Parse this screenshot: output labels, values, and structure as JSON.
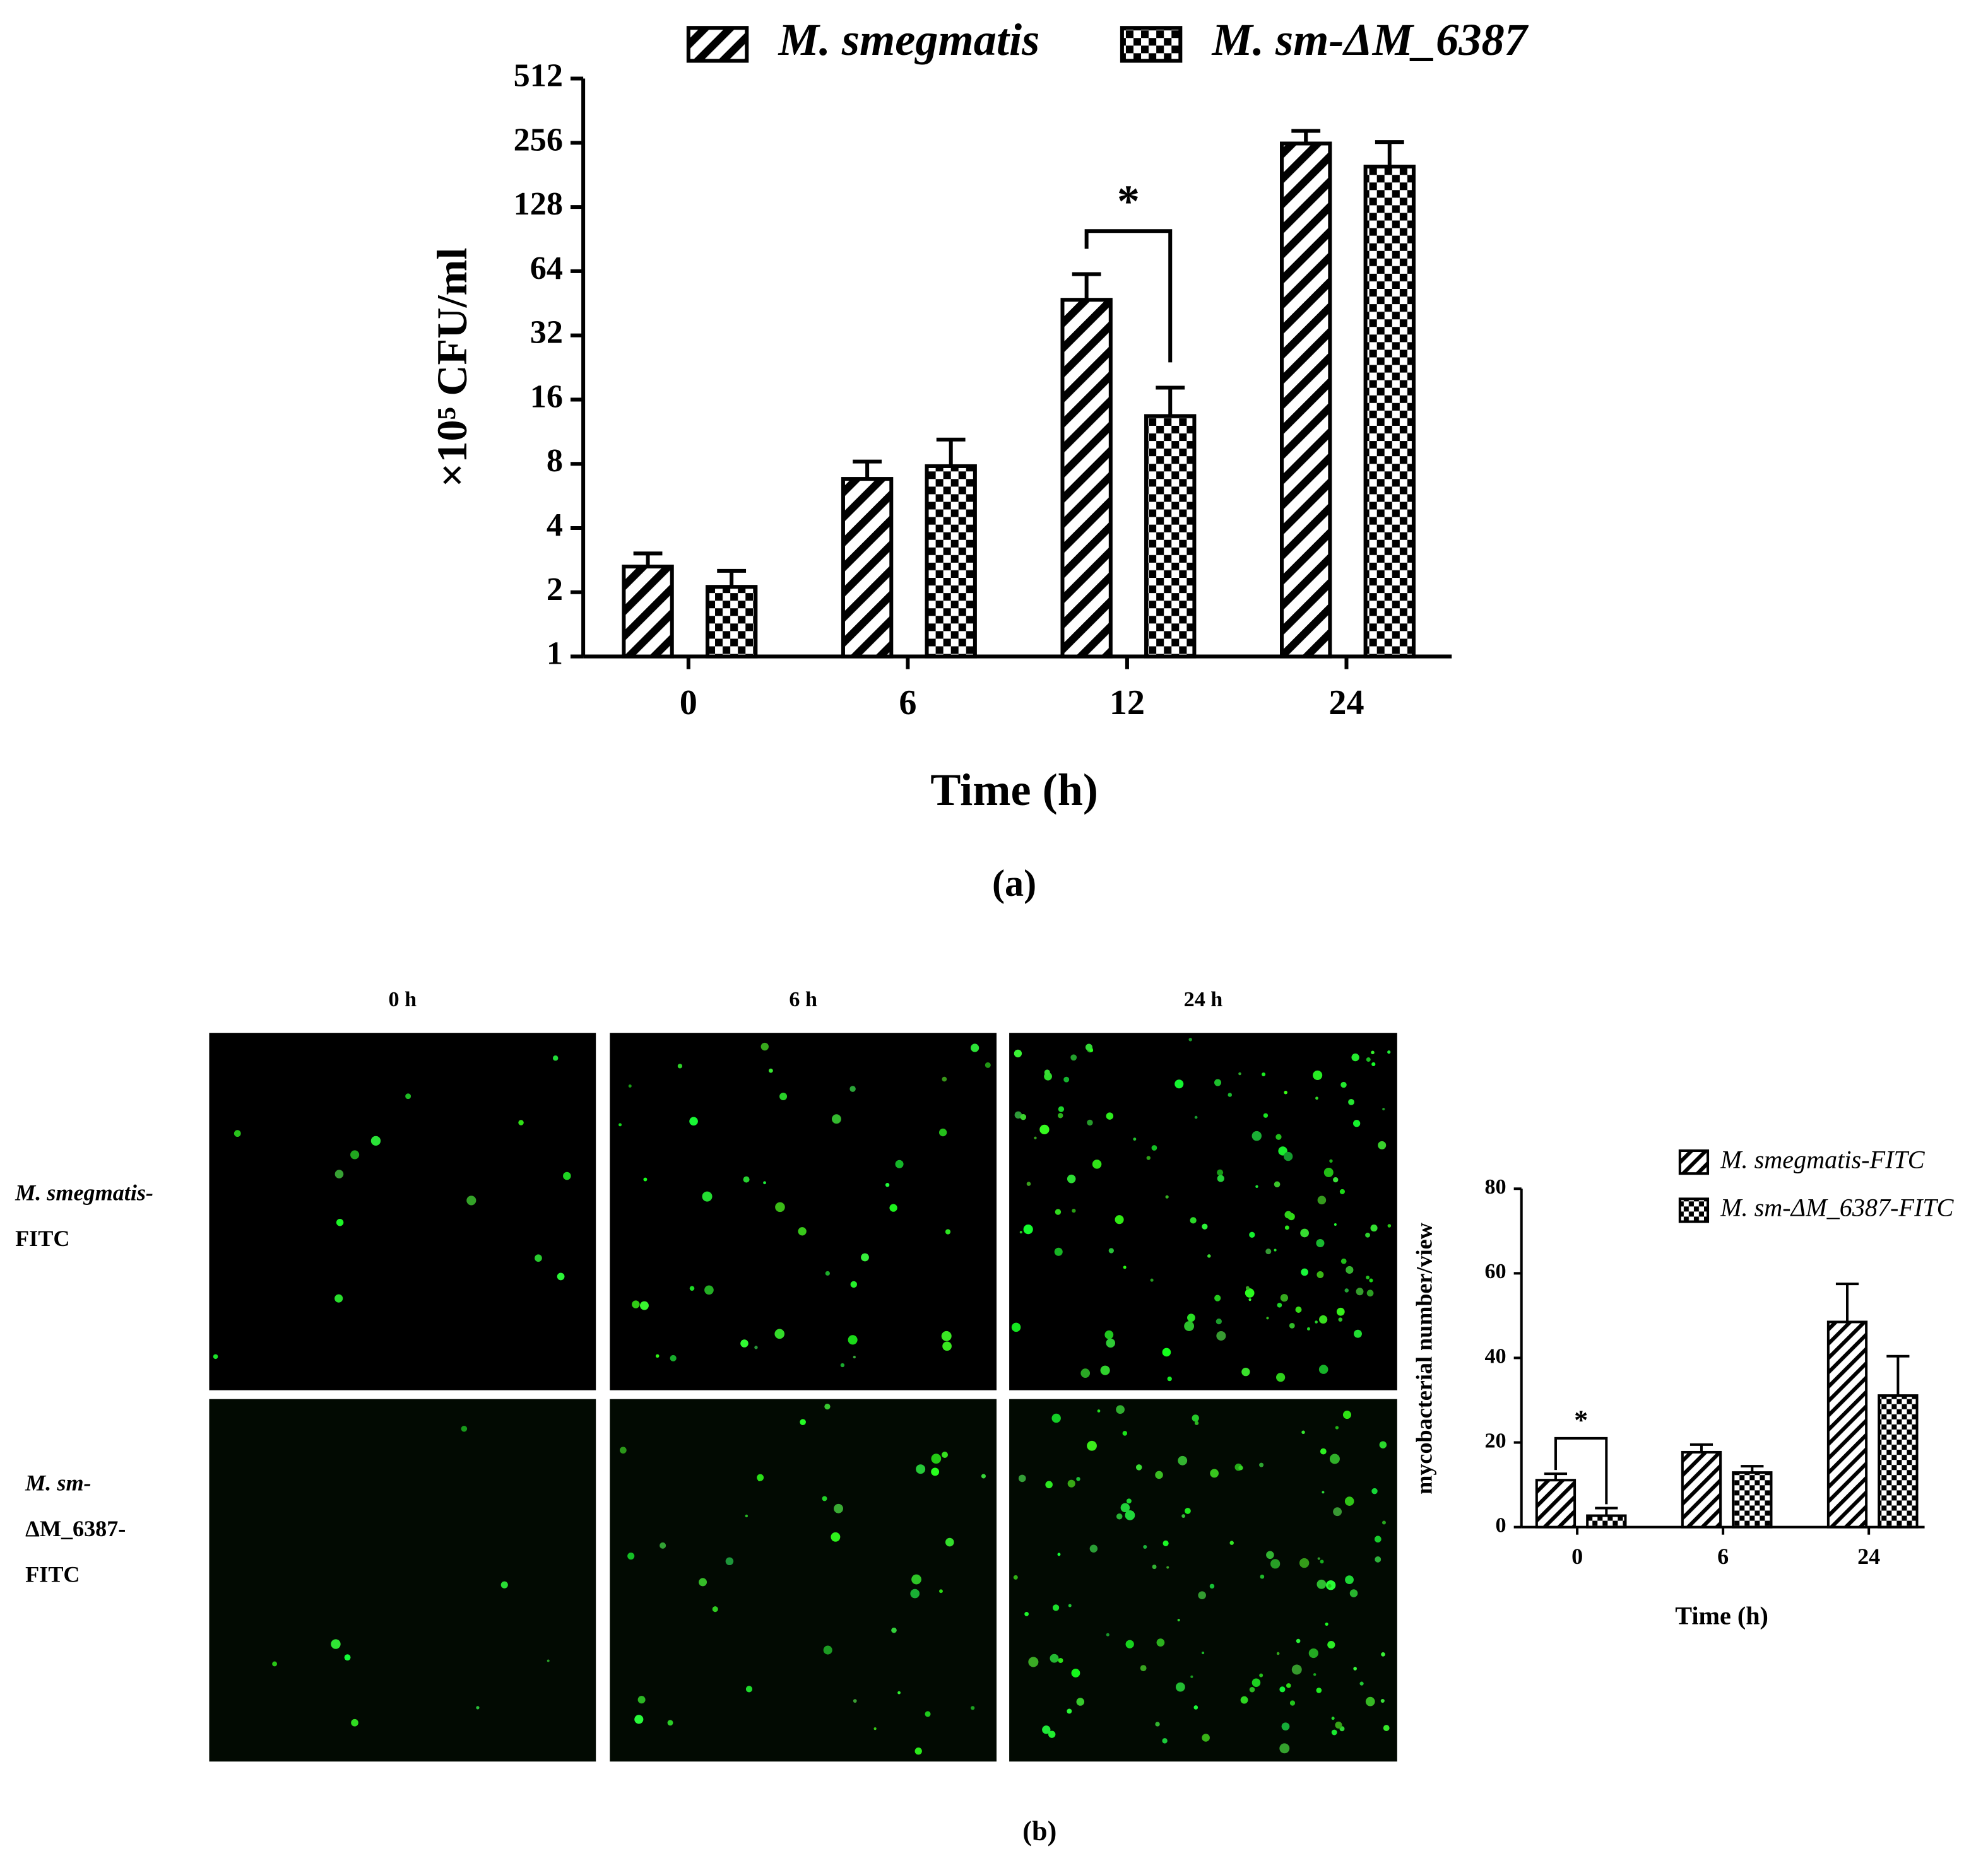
{
  "chart_data": [
    {
      "type": "bar",
      "panel_label": "(a)",
      "xlabel": "Time (h)",
      "ylabel": "×10⁵ CFU/ml",
      "categories": [
        "0",
        "6",
        "12",
        "24"
      ],
      "series": [
        {
          "name": "M. smegmatis",
          "color": "#000000",
          "pattern": "hatch",
          "values": [
            2.64,
            6.8,
            47,
            254
          ],
          "errors": [
            0.4,
            1.4,
            15,
            37
          ]
        },
        {
          "name": "M. sm-ΔM_6387",
          "color": "#000000",
          "pattern": "checker",
          "values": [
            2.12,
            7.8,
            13.4,
            198
          ],
          "errors": [
            0.4,
            2.6,
            4.8,
            60
          ]
        }
      ],
      "log_scale": true,
      "log_base": 2,
      "ylim": [
        1,
        512
      ],
      "yticks": [
        1,
        2,
        4,
        8,
        16,
        32,
        64,
        128,
        256,
        512
      ],
      "annotations": [
        {
          "text": "*",
          "x": "12"
        }
      ],
      "legend": "top"
    },
    {
      "type": "bar",
      "panel_label": "(b)",
      "xlabel": "Time (h)",
      "ylabel": "mycobacterial number/view",
      "categories": [
        "0",
        "6",
        "24"
      ],
      "series": [
        {
          "name": "M. smegmatis-FITC",
          "color": "#000000",
          "pattern": "hatch",
          "values": [
            11.1,
            17.7,
            48.5
          ],
          "errors": [
            1.5,
            1.8,
            9
          ]
        },
        {
          "name": "M. sm-ΔM_6387-FITC",
          "color": "#000000",
          "pattern": "checker",
          "values": [
            2.7,
            12.9,
            31.1
          ],
          "errors": [
            1.8,
            1.5,
            9.3
          ]
        }
      ],
      "log_scale": false,
      "ylim": [
        0,
        80
      ],
      "yticks": [
        0,
        20,
        40,
        60,
        80
      ],
      "annotations": [
        {
          "text": "*",
          "x": "0"
        }
      ],
      "legend": "top right"
    }
  ],
  "micrographs": {
    "columns": [
      "0 h",
      "6 h",
      "24 h"
    ],
    "rows": [
      [
        "M. smegmatis-",
        "FITC"
      ],
      [
        "M. sm-",
        "ΔM_6387-",
        "FITC"
      ]
    ]
  }
}
